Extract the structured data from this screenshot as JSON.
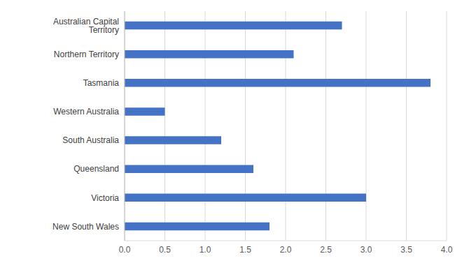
{
  "chart_data": {
    "type": "bar",
    "orientation": "horizontal",
    "categories": [
      "Australian Capital Territory",
      "Northern Territory",
      "Tasmania",
      "Western Australia",
      "South Australia",
      "Queensland",
      "Victoria",
      "New South Wales"
    ],
    "values": [
      2.7,
      2.1,
      3.8,
      0.5,
      1.2,
      1.6,
      3.0,
      1.8
    ],
    "color": "#4472c4",
    "xlim": [
      0,
      4
    ],
    "xticks": [
      {
        "value": 0,
        "label": "0.0"
      },
      0.5,
      {
        "value": 1,
        "label": "1.0"
      },
      1.5,
      {
        "value": 2,
        "label": "2.0"
      },
      2.5,
      {
        "value": 3,
        "label": "3.0"
      },
      3.5,
      {
        "value": 4,
        "label": "4.0"
      }
    ],
    "grid": true
  }
}
